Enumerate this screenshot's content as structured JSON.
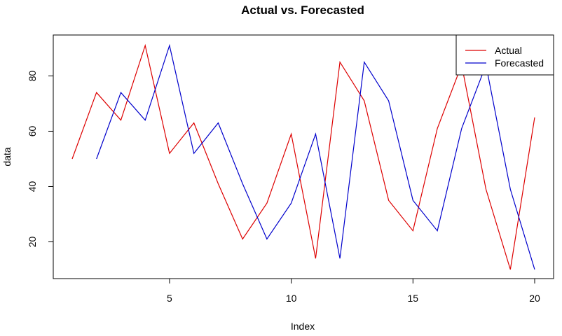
{
  "chart_data": {
    "type": "line",
    "title": "Actual vs. Forecasted",
    "xlabel": "Index",
    "ylabel": "data",
    "xlim": [
      1,
      20
    ],
    "ylim": [
      10,
      91
    ],
    "x_ticks": [
      5,
      10,
      15,
      20
    ],
    "y_ticks": [
      20,
      40,
      60,
      80
    ],
    "grid": false,
    "legend_position": "top-right",
    "series": [
      {
        "name": "Actual",
        "color": "#dd0000",
        "x": [
          1,
          2,
          3,
          4,
          5,
          6,
          7,
          8,
          9,
          10,
          11,
          12,
          13,
          14,
          15,
          16,
          17,
          18,
          19,
          20
        ],
        "values": [
          50,
          74,
          64,
          91,
          52,
          63,
          41,
          21,
          34,
          59,
          14,
          85,
          71,
          35,
          24,
          61,
          84,
          39,
          10,
          65
        ]
      },
      {
        "name": "Forecasted",
        "color": "#0000cc",
        "x": [
          2,
          3,
          4,
          5,
          6,
          7,
          8,
          9,
          10,
          11,
          12,
          13,
          14,
          15,
          16,
          17,
          18,
          19,
          20
        ],
        "values": [
          50,
          74,
          64,
          91,
          52,
          63,
          41,
          21,
          34,
          59,
          14,
          85,
          71,
          35,
          24,
          61,
          84,
          39,
          10
        ]
      }
    ]
  }
}
